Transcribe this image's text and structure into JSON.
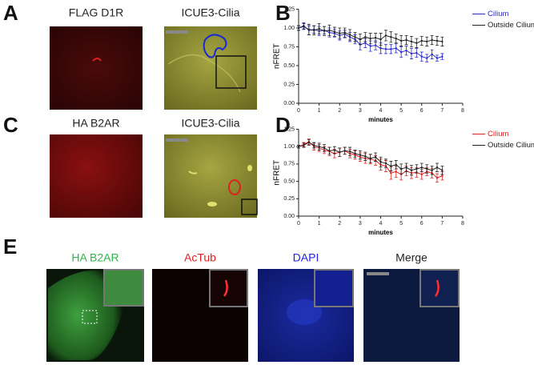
{
  "panel_labels": [
    "A",
    "B",
    "C",
    "D",
    "E"
  ],
  "image_labels": {
    "a_left": "FLAG D1R",
    "a_right": "ICUE3-Cilia",
    "c_left": "HA B2AR",
    "c_right": "ICUE3-Cilia",
    "e": [
      {
        "text": "HA B2AR",
        "color": "#2fb34a"
      },
      {
        "text": "AcTub",
        "color": "#e02020"
      },
      {
        "text": "DAPI",
        "color": "#2020e0"
      },
      {
        "text": "Merge",
        "color": "#222222"
      }
    ]
  },
  "chart_data": [
    {
      "type": "line",
      "ylabel": "nFRET",
      "xlabel": "minutes",
      "x": [
        0,
        0.25,
        0.5,
        0.75,
        1,
        1.25,
        1.5,
        1.75,
        2,
        2.25,
        2.5,
        2.75,
        3,
        3.25,
        3.5,
        3.75,
        4,
        4.25,
        4.5,
        4.75,
        5,
        5.25,
        5.5,
        5.75,
        6,
        6.25,
        6.5,
        6.75,
        7
      ],
      "xlim": [
        0,
        8
      ],
      "xticks": [
        0,
        1,
        2,
        3,
        4,
        5,
        6,
        7,
        8
      ],
      "ylim": [
        0,
        1.25
      ],
      "yticks": [
        {
          "value": 0,
          "label": "0.00"
        },
        {
          "value": 0.25,
          "label": "0.25"
        },
        {
          "value": 0.5,
          "label": "0.50"
        },
        {
          "value": 0.75,
          "label": "0.75"
        },
        {
          "value": 1,
          "label": "1.00"
        },
        {
          "value": 1.25,
          "label": "1.25"
        }
      ],
      "legend": "right",
      "series": [
        {
          "name": "Cilium",
          "color": "#2a2ad0",
          "values": [
            1.0,
            1.03,
            0.97,
            0.98,
            0.96,
            0.97,
            0.94,
            0.93,
            0.9,
            0.92,
            0.88,
            0.85,
            0.78,
            0.8,
            0.76,
            0.77,
            0.73,
            0.72,
            0.72,
            0.73,
            0.68,
            0.7,
            0.66,
            0.67,
            0.62,
            0.6,
            0.65,
            0.6,
            0.62
          ],
          "errors": [
            0.03,
            0.04,
            0.06,
            0.05,
            0.06,
            0.05,
            0.06,
            0.05,
            0.06,
            0.05,
            0.06,
            0.06,
            0.07,
            0.06,
            0.07,
            0.06,
            0.07,
            0.06,
            0.06,
            0.06,
            0.07,
            0.06,
            0.07,
            0.06,
            0.06,
            0.05,
            0.06,
            0.04,
            0.04
          ]
        },
        {
          "name": "Outside Cilium",
          "color": "#222222",
          "values": [
            1.0,
            1.02,
            0.98,
            0.97,
            0.99,
            0.96,
            0.97,
            0.95,
            0.93,
            0.94,
            0.91,
            0.88,
            0.85,
            0.88,
            0.86,
            0.87,
            0.85,
            0.9,
            0.88,
            0.86,
            0.83,
            0.84,
            0.82,
            0.8,
            0.83,
            0.82,
            0.84,
            0.83,
            0.82
          ],
          "errors": [
            0.03,
            0.04,
            0.07,
            0.06,
            0.07,
            0.06,
            0.07,
            0.06,
            0.07,
            0.06,
            0.07,
            0.06,
            0.07,
            0.06,
            0.07,
            0.06,
            0.08,
            0.07,
            0.07,
            0.06,
            0.07,
            0.06,
            0.07,
            0.06,
            0.06,
            0.06,
            0.06,
            0.06,
            0.06
          ]
        }
      ]
    },
    {
      "type": "line",
      "ylabel": "nFRET",
      "xlabel": "minutes",
      "x": [
        0,
        0.25,
        0.5,
        0.75,
        1,
        1.25,
        1.5,
        1.75,
        2,
        2.25,
        2.5,
        2.75,
        3,
        3.25,
        3.5,
        3.75,
        4,
        4.25,
        4.5,
        4.75,
        5,
        5.25,
        5.5,
        5.75,
        6,
        6.25,
        6.5,
        6.75,
        7
      ],
      "xlim": [
        0,
        8
      ],
      "xticks": [
        0,
        1,
        2,
        3,
        4,
        5,
        6,
        7,
        8
      ],
      "ylim": [
        0,
        1.25
      ],
      "yticks": [
        {
          "value": 0,
          "label": "0.00"
        },
        {
          "value": 0.25,
          "label": "0.25"
        },
        {
          "value": 0.5,
          "label": "0.50"
        },
        {
          "value": 0.75,
          "label": "0.75"
        },
        {
          "value": 1,
          "label": "1.00"
        },
        {
          "value": 1.25,
          "label": "1.25"
        }
      ],
      "legend": "right",
      "series": [
        {
          "name": "Cilium",
          "color": "#e02020",
          "values": [
            1.0,
            1.03,
            1.07,
            1.0,
            0.98,
            0.95,
            0.93,
            0.9,
            0.92,
            0.94,
            0.9,
            0.88,
            0.85,
            0.83,
            0.82,
            0.8,
            0.74,
            0.72,
            0.62,
            0.64,
            0.6,
            0.65,
            0.62,
            0.63,
            0.6,
            0.64,
            0.62,
            0.55,
            0.58
          ],
          "errors": [
            0.02,
            0.03,
            0.04,
            0.05,
            0.05,
            0.05,
            0.06,
            0.06,
            0.06,
            0.05,
            0.06,
            0.06,
            0.06,
            0.07,
            0.07,
            0.07,
            0.08,
            0.08,
            0.09,
            0.08,
            0.08,
            0.07,
            0.08,
            0.07,
            0.07,
            0.06,
            0.07,
            0.06,
            0.06
          ]
        },
        {
          "name": "Outside Cilium",
          "color": "#222222",
          "values": [
            1.0,
            1.02,
            1.06,
            1.02,
            1.0,
            0.98,
            0.94,
            0.95,
            0.92,
            0.94,
            0.93,
            0.9,
            0.88,
            0.86,
            0.83,
            0.85,
            0.78,
            0.76,
            0.72,
            0.74,
            0.68,
            0.7,
            0.66,
            0.68,
            0.7,
            0.68,
            0.66,
            0.7,
            0.66
          ],
          "errors": [
            0.02,
            0.03,
            0.04,
            0.04,
            0.05,
            0.05,
            0.05,
            0.05,
            0.06,
            0.05,
            0.06,
            0.05,
            0.06,
            0.06,
            0.06,
            0.06,
            0.07,
            0.06,
            0.07,
            0.06,
            0.07,
            0.06,
            0.07,
            0.06,
            0.06,
            0.06,
            0.06,
            0.06,
            0.06
          ]
        }
      ]
    }
  ]
}
